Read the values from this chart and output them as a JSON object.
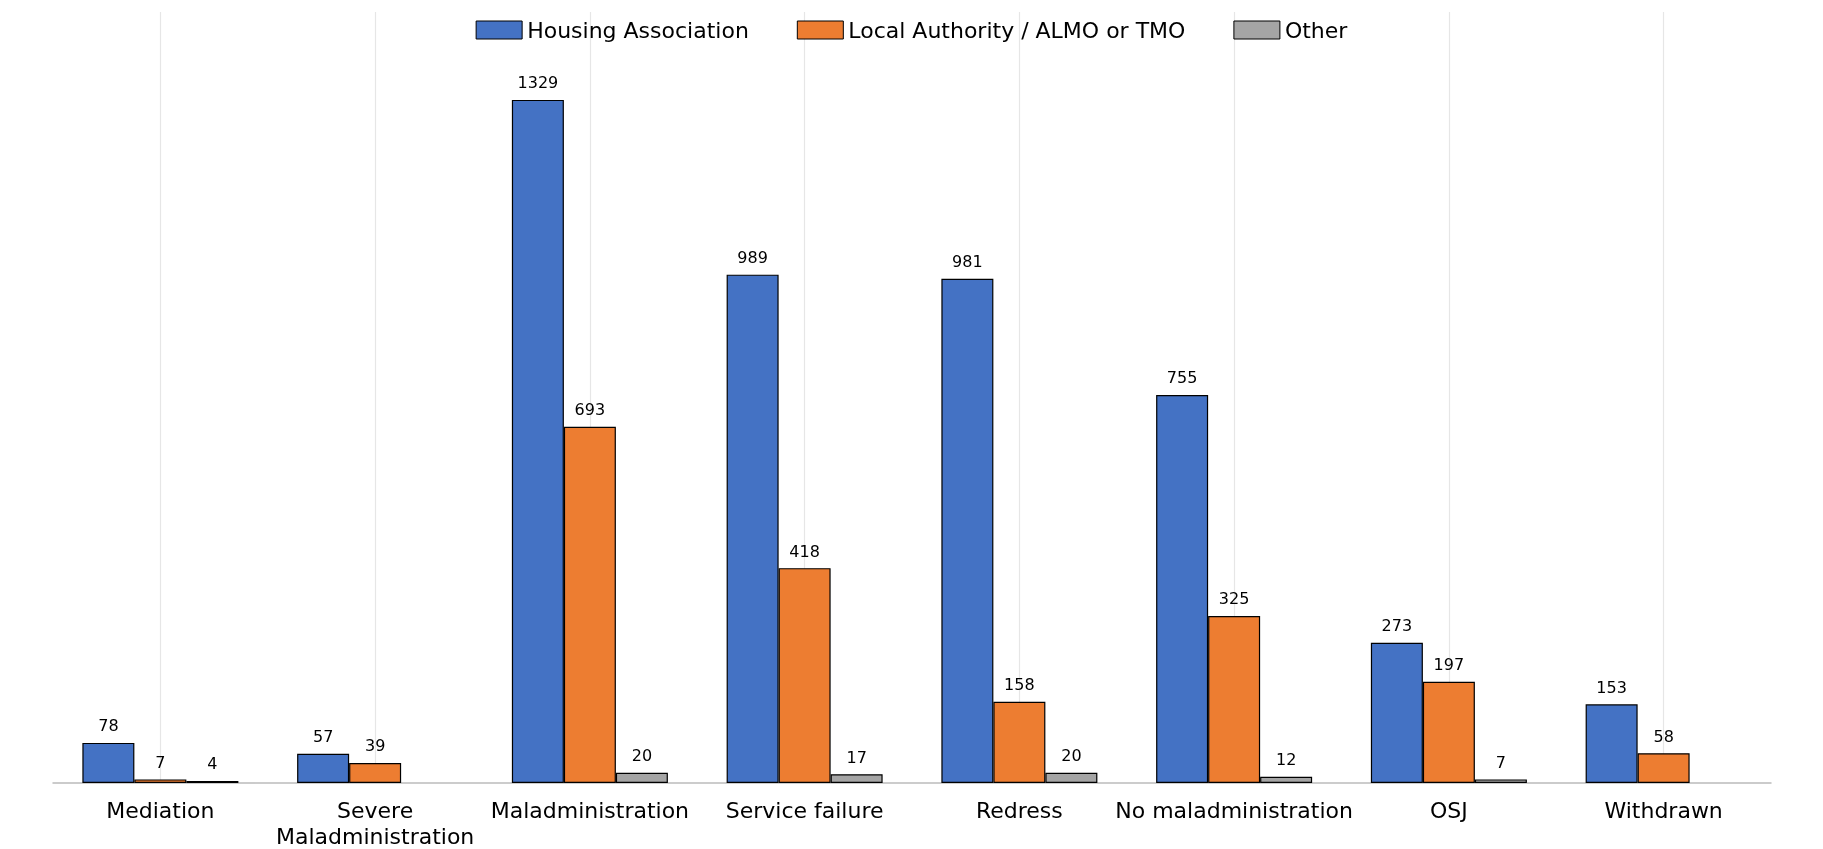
{
  "chart_data": {
    "type": "bar",
    "categories": [
      "Mediation",
      "Severe\nMaladministration",
      "Maladministration",
      "Service failure",
      "Redress",
      "No maladministration",
      "OSJ",
      "Withdrawn"
    ],
    "series": [
      {
        "name": "Housing Association",
        "color": "#4472c4",
        "values": [
          78,
          57,
          1329,
          989,
          981,
          755,
          273,
          153
        ],
        "value_labels": [
          "78",
          "57",
          "1329",
          "989",
          "981",
          "755",
          "273",
          "153"
        ]
      },
      {
        "name": "Local Authority / ALMO or TMO",
        "color": "#ed7d31",
        "values": [
          7,
          39,
          693,
          418,
          158,
          325,
          197,
          58
        ],
        "value_labels": [
          "7",
          "39",
          "693",
          "418",
          "158",
          "325",
          "197",
          "58"
        ]
      },
      {
        "name": "Other",
        "color": "#a5a5a5",
        "values": [
          4,
          0,
          20,
          17,
          20,
          12,
          7,
          0
        ],
        "value_labels": [
          "4",
          null,
          "20",
          "17",
          "20",
          "12",
          "7",
          null
        ]
      }
    ],
    "grid": "x",
    "legend": "top"
  }
}
